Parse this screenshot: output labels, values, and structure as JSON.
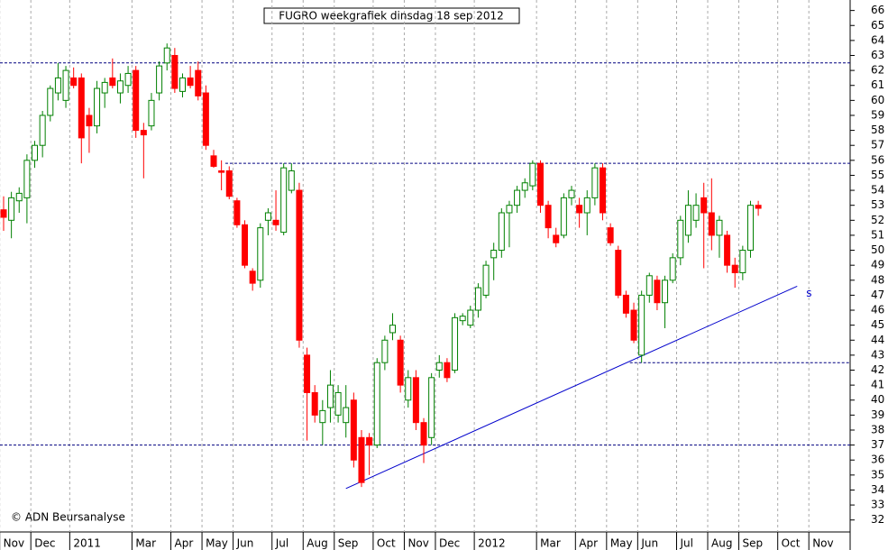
{
  "chart_data": {
    "type": "candlestick",
    "title": "FUGRO weekgrafiek dinsdag 18 sep 2012",
    "footer": "© ADN Beursanalyse",
    "categories": [
      "Nov",
      null,
      null,
      null,
      "Dec",
      null,
      null,
      null,
      null,
      "2011",
      null,
      null,
      null,
      null,
      null,
      null,
      null,
      "Mar",
      null,
      null,
      null,
      null,
      "Apr",
      null,
      null,
      null,
      "May",
      null,
      null,
      null,
      "Jun",
      null,
      null,
      null,
      null,
      "Jul",
      null,
      null,
      null,
      "Aug",
      null,
      null,
      null,
      "Sep",
      null,
      null,
      null,
      null,
      "Oct",
      null,
      null,
      null,
      "Nov",
      null,
      null,
      null,
      "Dec",
      null,
      null,
      null,
      null,
      "2012",
      null,
      null,
      null,
      null,
      null,
      null,
      null,
      "Mar",
      null,
      null,
      null,
      null,
      "Apr",
      null,
      null,
      null,
      "May",
      null,
      null,
      null,
      "Jun",
      null,
      null,
      null,
      null,
      "Jul",
      null,
      null,
      null,
      "Aug",
      null,
      null,
      null,
      "Sep",
      null,
      null,
      null,
      null,
      "Oct",
      null,
      null,
      null,
      "Nov",
      null,
      null,
      null,
      null,
      null
    ],
    "open": [
      52.7,
      52.0,
      53.3,
      53.5,
      56.0,
      57.0,
      59.0,
      60.5,
      60.0,
      61.5,
      61.5,
      59.0,
      58.3,
      60.5,
      61.5,
      60.5,
      61.0,
      62.0,
      58.0,
      58.3,
      60.5,
      62.5,
      63.0,
      60.6,
      61.5,
      62.0,
      60.5,
      56.3,
      55.3,
      55.3,
      53.3,
      51.7,
      48.6,
      48.0,
      52.0,
      52.0,
      51.2,
      54.0,
      54.0,
      43.0,
      40.5,
      38.5,
      39.5,
      39.0,
      38.5,
      40.0,
      37.5,
      37.5,
      37.0,
      42.5,
      44.5,
      44.0,
      40.0,
      41.5,
      38.5,
      37.5,
      42.0,
      42.5,
      42.0,
      45.3,
      45.0,
      46.0,
      47.0,
      49.5,
      50.0,
      52.5,
      53.0,
      54.0,
      54.3,
      55.8,
      53.0,
      51.0,
      51.0,
      53.5,
      53.0,
      52.5,
      53.5,
      55.5,
      51.5,
      50.0,
      47.0,
      46.0,
      43.0,
      47.0,
      48.0,
      46.5,
      48.0,
      49.5,
      51.0,
      52.0,
      53.5,
      52.5,
      51.0,
      51.0,
      49.0,
      48.5,
      50.0,
      53.0,
      null,
      null,
      null,
      null,
      null,
      null,
      null,
      null,
      null,
      null,
      null,
      null
    ],
    "high": [
      53.6,
      53.9,
      54.2,
      56.4,
      57.3,
      59.3,
      61.0,
      62.5,
      62.3,
      62.2,
      61.8,
      59.5,
      61.3,
      61.5,
      62.8,
      61.8,
      62.3,
      62.3,
      58.5,
      60.5,
      62.6,
      63.8,
      63.5,
      61.8,
      62.3,
      62.6,
      61.0,
      56.7,
      56.0,
      55.6,
      53.5,
      52.0,
      48.8,
      51.8,
      52.8,
      54.0,
      55.8,
      55.8,
      54.5,
      43.5,
      41.0,
      40.0,
      42.0,
      41.0,
      41.0,
      40.5,
      38.0,
      37.8,
      42.8,
      44.3,
      45.8,
      44.3,
      42.0,
      42.0,
      38.8,
      41.8,
      43.0,
      42.8,
      45.8,
      45.8,
      46.3,
      47.8,
      49.3,
      50.5,
      52.8,
      53.3,
      54.3,
      54.8,
      56.0,
      56.0,
      53.3,
      51.5,
      53.8,
      54.3,
      53.5,
      54.0,
      55.8,
      55.8,
      51.8,
      50.3,
      47.3,
      46.5,
      47.3,
      48.5,
      48.3,
      48.3,
      49.8,
      52.3,
      54.0,
      53.8,
      54.5,
      54.8,
      52.3,
      51.3,
      49.5,
      50.3,
      53.3,
      53.3,
      null,
      null,
      null,
      null,
      null,
      null,
      null,
      null,
      null,
      null,
      null,
      null
    ],
    "low": [
      51.3,
      50.8,
      52.5,
      51.8,
      55.5,
      56.2,
      58.6,
      60.0,
      59.5,
      60.8,
      55.8,
      56.5,
      57.8,
      59.5,
      60.8,
      59.8,
      60.5,
      57.5,
      54.8,
      58.0,
      60.0,
      62.0,
      60.5,
      60.2,
      60.8,
      60.0,
      56.7,
      55.5,
      54.0,
      53.4,
      51.5,
      48.8,
      47.3,
      47.5,
      51.0,
      51.3,
      51.0,
      53.8,
      43.5,
      37.3,
      38.5,
      37.0,
      38.5,
      38.5,
      37.5,
      35.5,
      34.2,
      35.0,
      36.8,
      42.0,
      44.0,
      40.5,
      39.5,
      38.0,
      35.8,
      37.0,
      41.5,
      41.2,
      41.8,
      45.0,
      44.8,
      45.5,
      46.8,
      48.0,
      49.5,
      50.2,
      52.5,
      53.5,
      54.0,
      52.5,
      50.8,
      50.2,
      50.8,
      53.0,
      51.5,
      51.0,
      53.0,
      52.0,
      50.3,
      46.8,
      45.5,
      43.8,
      42.5,
      46.5,
      46.0,
      44.8,
      47.8,
      49.0,
      50.5,
      51.5,
      48.8,
      50.0,
      49.5,
      48.5,
      47.5,
      48.0,
      49.5,
      52.3,
      null,
      null,
      null,
      null,
      null,
      null,
      null,
      null,
      null,
      null,
      null,
      null
    ],
    "close": [
      52.2,
      53.5,
      53.8,
      56.0,
      57.0,
      59.0,
      60.8,
      61.5,
      62.0,
      61.0,
      57.5,
      58.3,
      60.8,
      61.2,
      61.0,
      61.3,
      61.8,
      58.0,
      57.7,
      60.0,
      62.3,
      63.5,
      60.8,
      61.5,
      61.0,
      60.3,
      57.0,
      55.6,
      55.2,
      53.6,
      51.7,
      49.0,
      47.8,
      51.5,
      52.5,
      51.7,
      55.5,
      55.3,
      44.0,
      40.5,
      39.0,
      39.3,
      41.0,
      40.5,
      39.5,
      36.0,
      34.5,
      37.0,
      42.5,
      44.0,
      45.0,
      41.0,
      41.5,
      38.5,
      37.0,
      41.5,
      42.5,
      41.5,
      45.5,
      45.6,
      46.0,
      47.5,
      49.0,
      50.0,
      52.5,
      53.0,
      54.0,
      54.5,
      55.8,
      53.0,
      51.5,
      50.5,
      53.5,
      54.0,
      52.5,
      53.5,
      55.5,
      52.5,
      50.5,
      47.0,
      45.8,
      44.0,
      47.0,
      48.3,
      46.5,
      48.0,
      49.5,
      52.0,
      53.0,
      53.0,
      52.5,
      51.0,
      52.0,
      49.0,
      48.5,
      50.0,
      53.0,
      52.8,
      null,
      null,
      null,
      null,
      null,
      null,
      null,
      null,
      null,
      null,
      null,
      null
    ],
    "up_color": "#008000",
    "down_color": "#ff0000",
    "ylim": [
      31.2,
      66.7
    ],
    "yticks": [
      32,
      33,
      34,
      35,
      36,
      37,
      38,
      39,
      40,
      41,
      42,
      43,
      44,
      45,
      46,
      47,
      48,
      49,
      50,
      51,
      52,
      53,
      54,
      55,
      56,
      57,
      58,
      59,
      60,
      61,
      62,
      63,
      64,
      65,
      66
    ],
    "reference_lines": [
      {
        "value": 62.5,
        "from": 0
      },
      {
        "value": 55.8,
        "from": 29
      },
      {
        "value": 42.5,
        "from": 81
      },
      {
        "value": 37,
        "from": 0
      }
    ],
    "trendline": {
      "start": [
        44,
        34.1
      ],
      "end": [
        102,
        47.6
      ],
      "label": "s",
      "color": "#0000cc"
    },
    "grid": true
  }
}
